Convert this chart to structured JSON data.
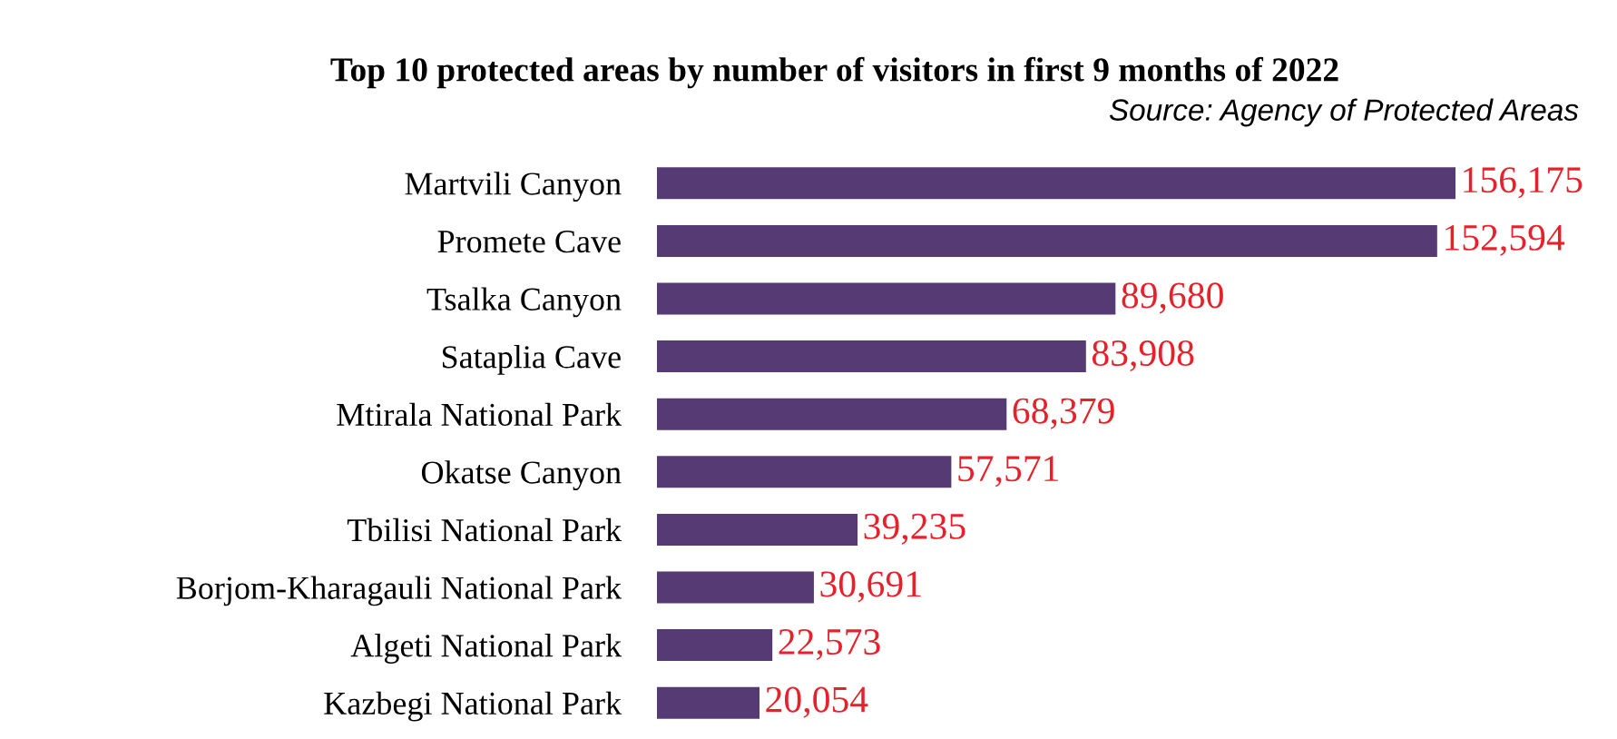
{
  "chart_data": {
    "type": "bar",
    "orientation": "horizontal",
    "title": "Top 10 protected areas by number of visitors in first 9 months of 2022",
    "annotations": [
      "Source: Agency of Protected Areas"
    ],
    "categories": [
      "Martvili Canyon",
      "Promete Cave",
      "Tsalka Canyon",
      "Sataplia Cave",
      "Mtirala National Park",
      "Okatse Canyon",
      "Tbilisi National Park",
      "Borjom-Kharagauli National Park",
      "Algeti National Park",
      "Kazbegi National Park"
    ],
    "values": [
      156175,
      152594,
      89680,
      83908,
      68379,
      57571,
      39235,
      30691,
      22573,
      20054
    ],
    "color": "#553a73",
    "value_labels": [
      "156,175",
      "152,594",
      "89,680",
      "83,908",
      "68,379",
      "57,571",
      "39,235",
      "30,691",
      "22,573",
      "20,054"
    ]
  }
}
